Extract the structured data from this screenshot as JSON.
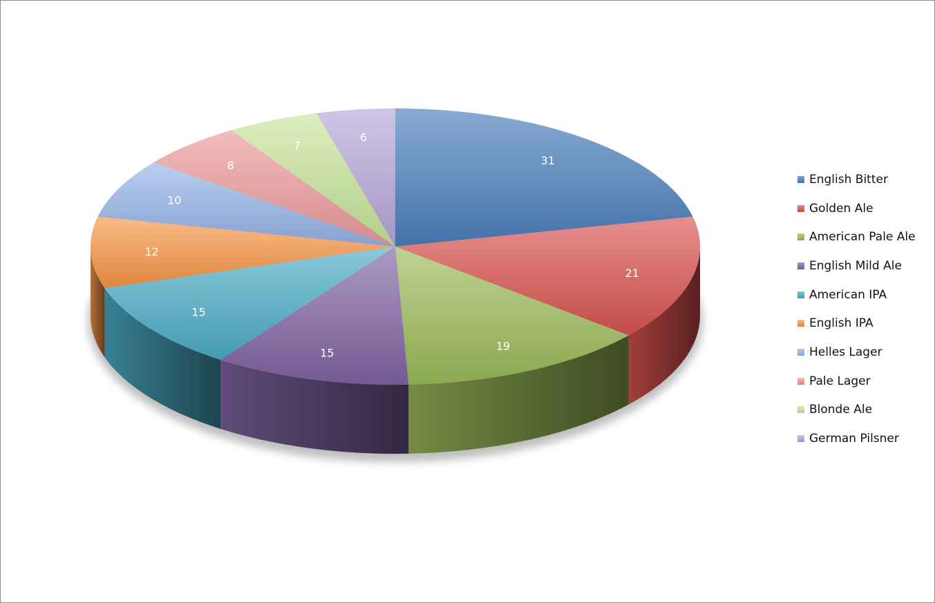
{
  "chart_data": {
    "type": "pie",
    "style": "3d",
    "categories": [
      "English Bitter",
      "Golden Ale",
      "American Pale Ale",
      "English Mild Ale",
      "American IPA",
      "English IPA",
      "Helles Lager",
      "Pale Lager",
      "Blonde Ale",
      "German Pilsner"
    ],
    "values": [
      31,
      21,
      19,
      15,
      15,
      12,
      10,
      8,
      7,
      6
    ],
    "data_labels": [
      "31",
      "21",
      "19",
      "15",
      "15",
      "12",
      "10",
      "8",
      "7",
      "6"
    ],
    "colors": [
      "#4a7ebb",
      "#d9534f",
      "#9bbb59",
      "#8064a2",
      "#4bacc6",
      "#f79646",
      "#95b3e8",
      "#ec9a9a",
      "#c7e59a",
      "#b7a5d8"
    ],
    "legend_position": "right"
  }
}
